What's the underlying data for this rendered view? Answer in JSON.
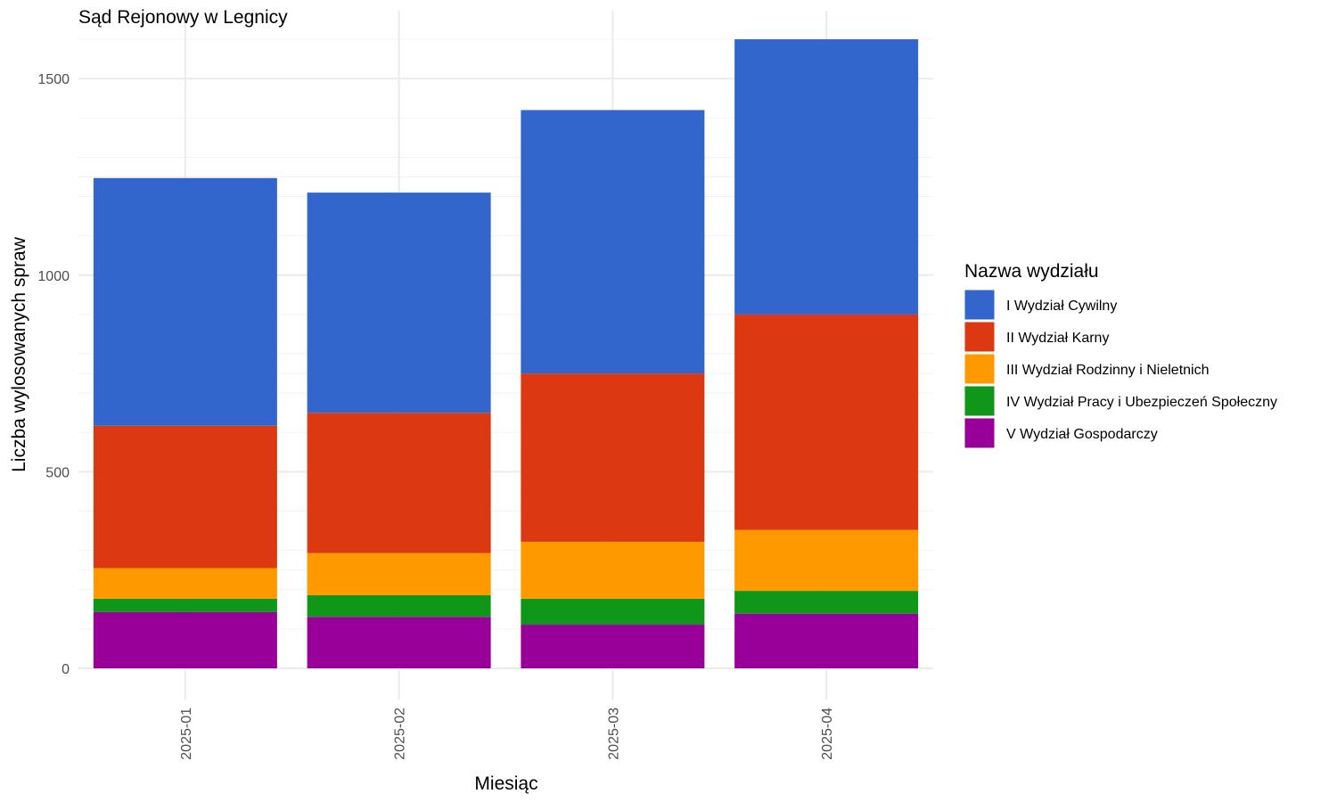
{
  "chart_data": {
    "type": "bar",
    "stacked": true,
    "title": "Sąd Rejonowy w Legnicy",
    "xlabel": "Miesiąc",
    "ylabel": "Liczba wylosowanych spraw",
    "categories": [
      "2025-01",
      "2025-02",
      "2025-03",
      "2025-04"
    ],
    "ylim": [
      0,
      1600
    ],
    "yticks": [
      "0",
      "500",
      "1000",
      "1500"
    ],
    "grid": true,
    "legend": {
      "title": "Nazwa wydziału",
      "position": "right"
    },
    "series": [
      {
        "name": "I Wydział Cywilny",
        "color": "#3366CC",
        "values": [
          630,
          560,
          670,
          700
        ]
      },
      {
        "name": "II Wydział Karny",
        "color": "#DC3912",
        "values": [
          362,
          357,
          428,
          548
        ]
      },
      {
        "name": "III Wydział Rodzinny i Nieletnich",
        "color": "#FF9900",
        "values": [
          78,
          107,
          145,
          155
        ]
      },
      {
        "name": "IV Wydział Pracy i Ubezpieczeń Społeczny",
        "color": "#109618",
        "values": [
          34,
          55,
          66,
          58
        ]
      },
      {
        "name": "V Wydział Gospodarczy",
        "color": "#990099",
        "values": [
          143,
          131,
          111,
          139
        ]
      }
    ]
  }
}
